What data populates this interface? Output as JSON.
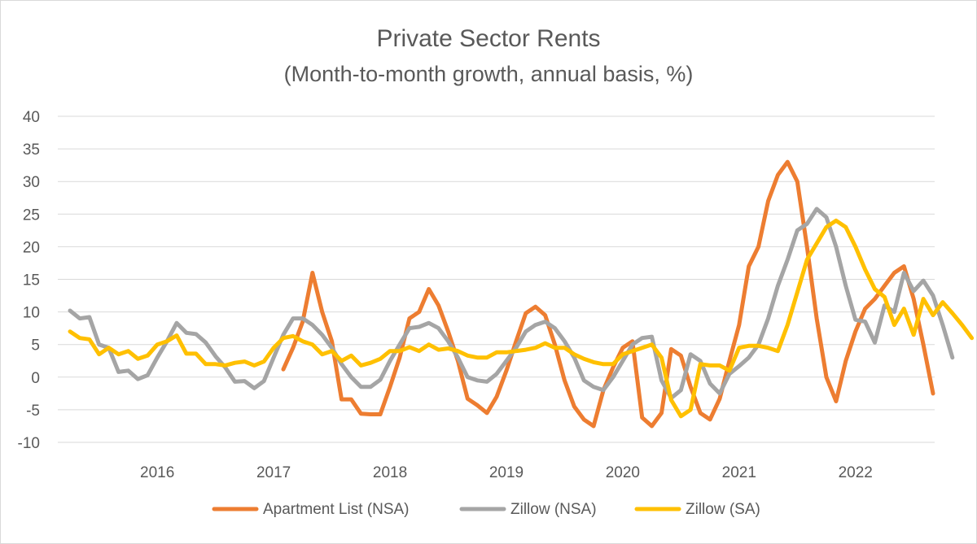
{
  "chart_data": {
    "type": "line",
    "title": "Private Sector Rents",
    "subtitle": "(Month-to-month growth, annual basis, %)",
    "xlabel": "",
    "ylabel": "",
    "ylim": [
      -10,
      40
    ],
    "yticks": [
      40,
      35,
      30,
      25,
      20,
      15,
      10,
      5,
      0,
      -5,
      -10
    ],
    "ytick_labels": [
      "40",
      "35",
      "30",
      "25",
      "20",
      "15",
      "10",
      "5",
      "0",
      "-5",
      "-10"
    ],
    "x_start": "2015-04",
    "x_end": "2022-09",
    "xtick_labels": [
      "2016",
      "2017",
      "2018",
      "2019",
      "2020",
      "2021",
      "2022"
    ],
    "xtick_positions": [
      "2016-01",
      "2017-01",
      "2018-01",
      "2019-01",
      "2020-01",
      "2021-01",
      "2022-01"
    ],
    "grid": "horizontal",
    "legend_position": "bottom",
    "series": [
      {
        "name": "Apartment List (NSA)",
        "color": "#ed7d31",
        "start": "2017-02",
        "values": [
          1.2,
          4.5,
          8.5,
          16.0,
          10.0,
          5.5,
          -3.4,
          -3.4,
          -5.6,
          -5.7,
          -5.7,
          -1.5,
          3.0,
          9.0,
          10.0,
          13.5,
          11.0,
          7.0,
          2.5,
          -3.3,
          -4.3,
          -5.5,
          -3.0,
          1.0,
          5.5,
          9.8,
          10.8,
          9.5,
          5.0,
          -0.5,
          -4.5,
          -6.5,
          -7.5,
          -2.0,
          1.5,
          4.5,
          5.5,
          -6.2,
          -7.5,
          -5.5,
          4.3,
          3.3,
          -1.5,
          -5.5,
          -6.5,
          -3.3,
          2.5,
          8.0,
          17.0,
          20.0,
          27.0,
          31.0,
          33.0,
          30.0,
          20.0,
          9.0,
          0.0,
          -3.7,
          2.5,
          7.0,
          10.5,
          12.0,
          14.0,
          16.0,
          17.0,
          12.0,
          5.0,
          -2.5
        ]
      },
      {
        "name": "Zillow (NSA)",
        "color": "#a5a5a5",
        "start": "2015-04",
        "values": [
          10.2,
          9.0,
          9.2,
          5.0,
          4.5,
          0.8,
          1.0,
          -0.3,
          0.3,
          3.0,
          5.5,
          8.3,
          6.8,
          6.6,
          5.3,
          3.2,
          1.5,
          -0.7,
          -0.6,
          -1.7,
          -0.6,
          3.0,
          6.5,
          9.0,
          9.0,
          8.0,
          6.5,
          4.5,
          2.0,
          0.0,
          -1.5,
          -1.5,
          -0.4,
          2.5,
          5.0,
          7.5,
          7.7,
          8.3,
          7.5,
          5.5,
          3.0,
          0.0,
          -0.5,
          -0.7,
          0.5,
          2.5,
          4.5,
          7.0,
          8.0,
          8.5,
          7.5,
          5.5,
          3.0,
          -0.5,
          -1.5,
          -2.0,
          0.0,
          2.5,
          5.0,
          6.0,
          6.2,
          -0.5,
          -3.2,
          -2.0,
          3.5,
          2.5,
          -1.0,
          -2.5,
          0.5,
          1.7,
          3.0,
          5.0,
          9.0,
          14.0,
          18.0,
          22.5,
          23.5,
          25.8,
          24.5,
          20.0,
          14.0,
          8.8,
          8.5,
          5.3,
          11.0,
          10.0,
          16.0,
          13.2,
          14.8,
          12.5,
          8.0,
          3.0
        ]
      },
      {
        "name": "Zillow (SA)",
        "color": "#ffc000",
        "start": "2015-04",
        "values": [
          7.0,
          6.0,
          5.8,
          3.5,
          4.5,
          3.5,
          4.0,
          2.8,
          3.3,
          5.0,
          5.5,
          6.4,
          3.6,
          3.6,
          2.0,
          2.0,
          1.8,
          2.2,
          2.4,
          1.8,
          2.4,
          4.5,
          6.0,
          6.3,
          5.5,
          5.0,
          3.5,
          4.0,
          2.5,
          3.3,
          1.8,
          2.2,
          2.8,
          4.0,
          4.0,
          4.6,
          4.0,
          5.0,
          4.2,
          4.4,
          4.0,
          3.3,
          3.0,
          3.0,
          3.8,
          3.8,
          4.0,
          4.2,
          4.5,
          5.2,
          4.5,
          4.5,
          3.5,
          2.8,
          2.3,
          2.0,
          2.0,
          3.5,
          4.0,
          4.5,
          5.0,
          3.0,
          -3.5,
          -6.0,
          -5.0,
          2.0,
          1.8,
          1.8,
          1.0,
          4.5,
          4.8,
          4.8,
          4.5,
          4.0,
          8.0,
          13.0,
          18.0,
          20.5,
          23.0,
          24.0,
          23.0,
          20.0,
          16.5,
          13.5,
          12.3,
          8.0,
          10.5,
          6.5,
          12.0,
          9.5,
          11.5,
          9.8,
          8.0,
          6.0
        ]
      }
    ]
  }
}
